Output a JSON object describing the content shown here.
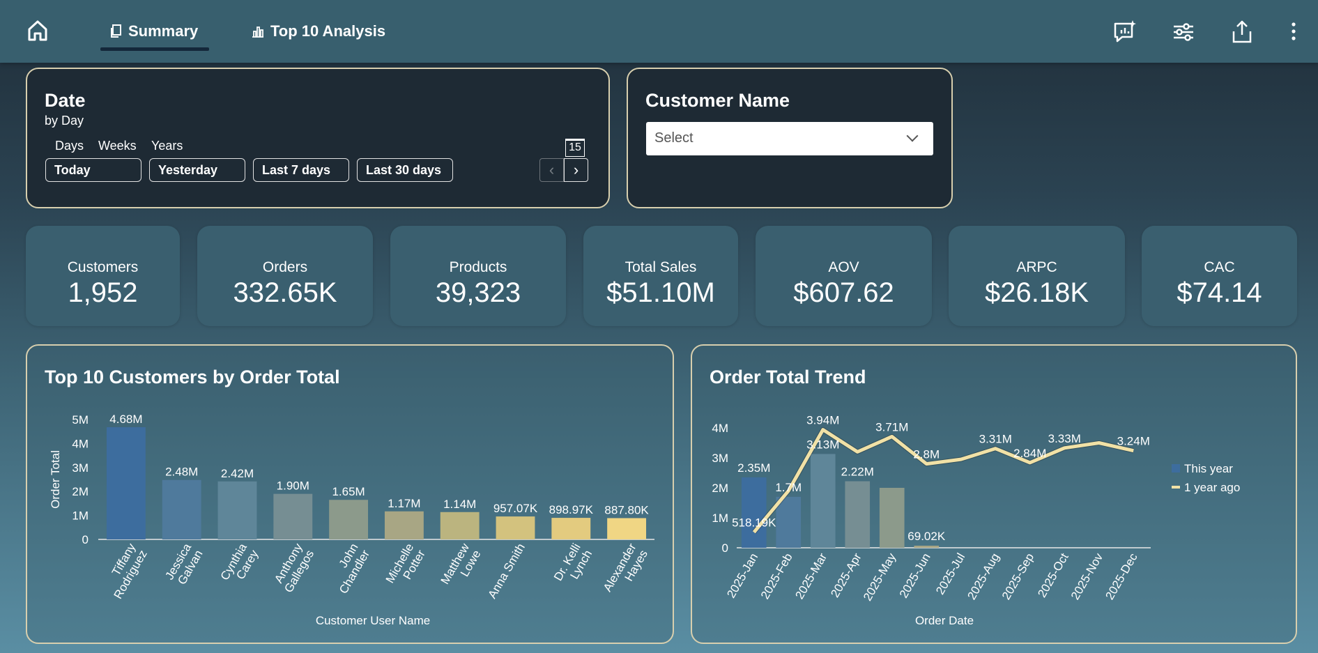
{
  "nav": {
    "tabs": [
      {
        "label": "Summary",
        "icon": "copy-icon",
        "active": true
      },
      {
        "label": "Top 10 Analysis",
        "icon": "bar-chart-icon",
        "active": false
      }
    ]
  },
  "date_filter": {
    "title": "Date",
    "subtitle": "by Day",
    "granularity": [
      "Days",
      "Weeks",
      "Years"
    ],
    "ranges": [
      "Today",
      "Yesterday",
      "Last 7 days",
      "Last 30 days"
    ],
    "calendar_day": "15"
  },
  "customer_filter": {
    "title": "Customer Name",
    "placeholder": "Select"
  },
  "kpis": [
    {
      "label": "Customers",
      "value": "1,952"
    },
    {
      "label": "Orders",
      "value": "332.65K"
    },
    {
      "label": "Products",
      "value": "39,323"
    },
    {
      "label": "Total Sales",
      "value": "$51.10M"
    },
    {
      "label": "AOV",
      "value": "$607.62"
    },
    {
      "label": "ARPC",
      "value": "$26.18K"
    },
    {
      "label": "CAC",
      "value": "$74.14"
    }
  ],
  "chart_data": [
    {
      "type": "bar",
      "title": "Top 10 Customers by Order Total",
      "xlabel": "Customer User Name",
      "ylabel": "Order Total",
      "ylim": [
        0,
        5000000
      ],
      "yticks": [
        "0",
        "1M",
        "2M",
        "3M",
        "4M",
        "5M"
      ],
      "categories": [
        [
          "Tiffany",
          "Rodriguez"
        ],
        [
          "Jessica",
          "Galvan"
        ],
        [
          "Cynthia",
          "Carey"
        ],
        [
          "Anthony",
          "Gallegos"
        ],
        [
          "John",
          "Chandler"
        ],
        [
          "Michelle",
          "Potter"
        ],
        [
          "Matthew",
          "Lowe"
        ],
        [
          "Anna Smith"
        ],
        [
          "Dr. Kelli",
          "Lynch"
        ],
        [
          "Alexander",
          "Hayes"
        ]
      ],
      "values": [
        4680000,
        2480000,
        2420000,
        1900000,
        1650000,
        1170000,
        1140000,
        957070,
        898970,
        887800
      ],
      "labels": [
        "4.68M",
        "2.48M",
        "2.42M",
        "1.90M",
        "1.65M",
        "1.17M",
        "1.14M",
        "957.07K",
        "898.97K",
        "887.80K"
      ],
      "colors": [
        "#3d6d9e",
        "#4f7a9c",
        "#5f8699",
        "#768e93",
        "#8c9a8b",
        "#a8a684",
        "#bbb47f",
        "#d3c27e",
        "#e3cb7f",
        "#f0d684"
      ],
      "grid": false,
      "legend": "none"
    },
    {
      "type": "bar",
      "title": "Order Total Trend",
      "xlabel": "Order Date",
      "ylabel": "",
      "ylim": [
        0,
        4000000
      ],
      "yticks": [
        "0",
        "1M",
        "2M",
        "3M",
        "4M"
      ],
      "categories": [
        "2025-Jan",
        "2025-Feb",
        "2025-Mar",
        "2025-Apr",
        "2025-May",
        "2025-Jun",
        "2025-Jul",
        "2025-Aug",
        "2025-Sep",
        "2025-Oct",
        "2025-Nov",
        "2025-Dec"
      ],
      "legend": "right",
      "series": [
        {
          "name": "This year",
          "type": "bar",
          "values": [
            2350000,
            1700000,
            3130000,
            2220000,
            2000000,
            69020,
            null,
            null,
            null,
            null,
            null,
            null
          ],
          "labels": [
            "2.35M",
            "1.7M",
            "3.13M",
            "2.22M",
            "",
            "69.02K",
            "",
            "",
            "",
            "",
            "",
            ""
          ],
          "colors": [
            "#3d6d9e",
            "#4f7a9c",
            "#5f8699",
            "#768e93",
            "#8c9a8b",
            "#a8a684"
          ]
        },
        {
          "name": "1 year ago",
          "type": "line",
          "color": "#f1e1a6",
          "values": [
            518190,
            1900000,
            3940000,
            3200000,
            3710000,
            2800000,
            2950000,
            3310000,
            2840000,
            3330000,
            3500000,
            3240000
          ],
          "labels": [
            "518.19K",
            "",
            "3.94M",
            "",
            "3.71M",
            "2.8M",
            "",
            "3.31M",
            "2.84M",
            "3.33M",
            "",
            "3.24M"
          ]
        }
      ],
      "grid": false
    }
  ]
}
